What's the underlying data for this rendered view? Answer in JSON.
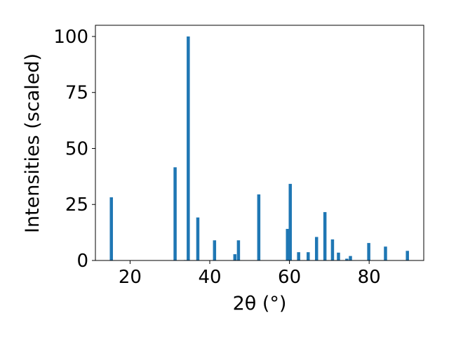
{
  "chart_data": {
    "type": "bar",
    "xlabel": "2θ (°)",
    "ylabel": "Intensities (scaled)",
    "xlim": [
      11.3,
      93.7
    ],
    "ylim": [
      0,
      105
    ],
    "xticks": [
      20,
      40,
      60,
      80
    ],
    "yticks": [
      0,
      25,
      50,
      75,
      100
    ],
    "grid": false,
    "bar_color": "#1f77b4",
    "x": [
      15.3,
      31.3,
      33.9,
      34.6,
      37.0,
      41.2,
      46.3,
      47.2,
      52.3,
      59.5,
      60.2,
      62.3,
      64.7,
      66.8,
      68.9,
      70.8,
      72.3,
      74.4,
      75.3,
      79.9,
      84.1,
      89.6
    ],
    "values": [
      28.2,
      41.6,
      0.2,
      100,
      19.2,
      9.0,
      2.8,
      9.0,
      29.5,
      14.1,
      34.2,
      3.7,
      3.7,
      10.5,
      21.6,
      9.4,
      3.5,
      0.8,
      2.0,
      7.8,
      6.2,
      4.3
    ]
  }
}
